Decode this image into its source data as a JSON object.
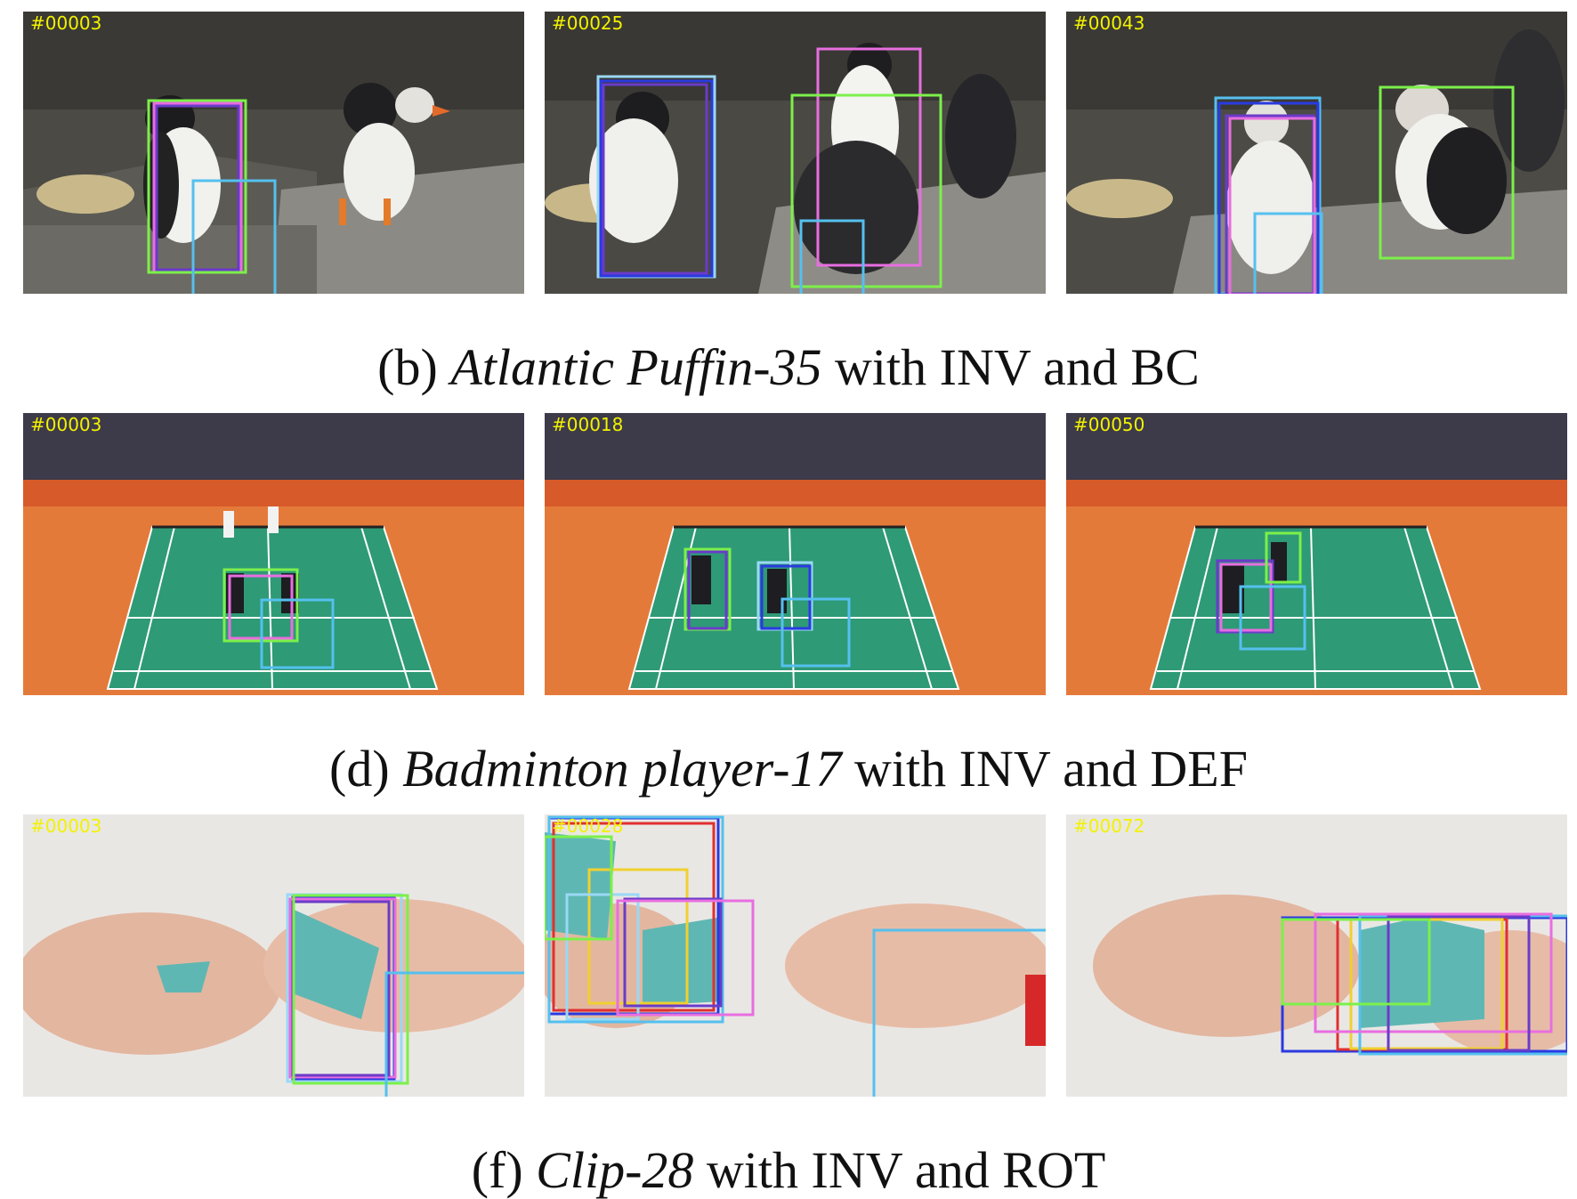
{
  "colors": {
    "green": "#7cf04a",
    "pink": "#e86ee0",
    "purple": "#6a3bc9",
    "cyan": "#55c0ee",
    "blue": "#2a3ae0",
    "lightblue": "#9ad8f5",
    "red": "#e03030",
    "yellow": "#f0d030"
  },
  "rows": [
    {
      "frames": [
        {
          "id": "#00003"
        },
        {
          "id": "#00025"
        },
        {
          "id": "#00043"
        }
      ],
      "caption": {
        "prefix": "(b) ",
        "name": "Atlantic Puffin-35",
        "suffix": " with INV and BC"
      }
    },
    {
      "frames": [
        {
          "id": "#00003"
        },
        {
          "id": "#00018"
        },
        {
          "id": "#00050"
        }
      ],
      "caption": {
        "prefix": "(d) ",
        "name": "Badminton player-17",
        "suffix": " with INV and DEF"
      }
    },
    {
      "frames": [
        {
          "id": "#00003"
        },
        {
          "id": "#00028"
        },
        {
          "id": "#00072"
        }
      ],
      "caption": {
        "prefix": "(f) ",
        "name": "Clip-28",
        "suffix": " with INV and ROT"
      }
    }
  ]
}
